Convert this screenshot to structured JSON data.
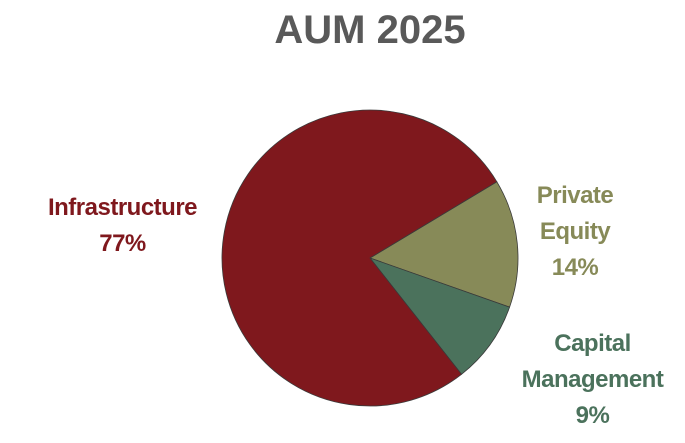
{
  "chart_data": {
    "type": "pie",
    "title": "AUM 2025",
    "categories": [
      "Private Equity",
      "Capital Management",
      "Infrastructure"
    ],
    "values": [
      14,
      9,
      77
    ],
    "value_labels": [
      "14%",
      "9%",
      "77%"
    ],
    "colors": [
      "#878a58",
      "#4b725c",
      "#7f181d"
    ]
  }
}
